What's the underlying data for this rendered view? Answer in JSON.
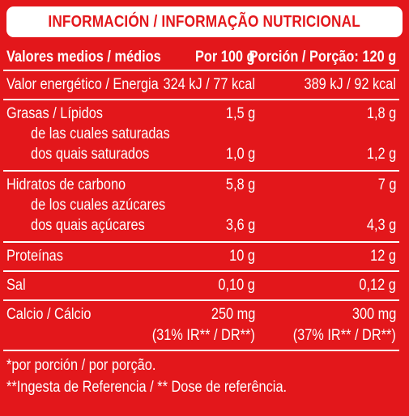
{
  "title": "INFORMACIÓN / INFORMAÇÃO NUTRICIONAL",
  "header": {
    "col_label": "Valores medios / médios",
    "col_100g": "Por 100 g",
    "col_portion": "Porción / Porção: 120 g"
  },
  "rows": {
    "energy": {
      "label": "Valor energético / Energia",
      "per100": "324 kJ / 77 kcal",
      "portion": "389 kJ / 92  kcal"
    },
    "fat": {
      "label": "Grasas / Lípidos",
      "per100": "1,5 g",
      "portion": "1,8 g"
    },
    "sat_es": {
      "label": "de las cuales saturadas"
    },
    "sat_pt": {
      "label": "dos quais saturados",
      "per100": "1,0 g",
      "portion": "1,2 g"
    },
    "carbs": {
      "label": "Hidratos de carbono",
      "per100": "5,8 g",
      "portion": "7 g"
    },
    "sug_es": {
      "label": "de los cuales azúcares"
    },
    "sug_pt": {
      "label": "dos quais açúcares",
      "per100": "3,6 g",
      "portion": "4,3 g"
    },
    "protein": {
      "label": "Proteínas",
      "per100": "10 g",
      "portion": "12 g"
    },
    "salt": {
      "label": "Sal",
      "per100": "0,10 g",
      "portion": "0,12 g"
    },
    "calcium": {
      "label": "Calcio / Cálcio",
      "per100": "250 mg",
      "portion": "300 mg",
      "per100_ri": "(31% IR** / DR**)",
      "portion_ri": "(37% IR** / DR**)"
    }
  },
  "footnotes": {
    "f1": "*por porción / por porção.",
    "f2": "**Ingesta de Referencia / ** Dose de referência."
  }
}
